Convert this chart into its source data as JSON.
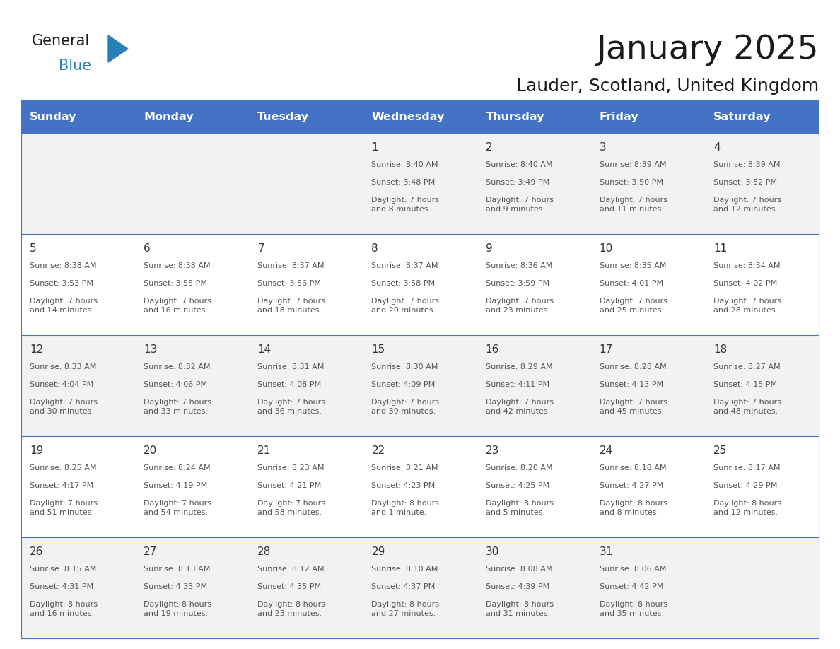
{
  "title": "January 2025",
  "subtitle": "Lauder, Scotland, United Kingdom",
  "header_bg_color": "#4472C4",
  "header_text_color": "#FFFFFF",
  "header_days": [
    "Sunday",
    "Monday",
    "Tuesday",
    "Wednesday",
    "Thursday",
    "Friday",
    "Saturday"
  ],
  "odd_row_bg": "#F2F2F2",
  "even_row_bg": "#FFFFFF",
  "line_color": "#4472C4",
  "cell_text_color": "#555555",
  "day_num_color": "#333333",
  "title_color": "#1a1a1a",
  "weeks": [
    {
      "days": [
        {
          "day": "",
          "sunrise": "",
          "sunset": "",
          "daylight": ""
        },
        {
          "day": "",
          "sunrise": "",
          "sunset": "",
          "daylight": ""
        },
        {
          "day": "",
          "sunrise": "",
          "sunset": "",
          "daylight": ""
        },
        {
          "day": "1",
          "sunrise": "Sunrise: 8:40 AM",
          "sunset": "Sunset: 3:48 PM",
          "daylight": "Daylight: 7 hours\nand 8 minutes."
        },
        {
          "day": "2",
          "sunrise": "Sunrise: 8:40 AM",
          "sunset": "Sunset: 3:49 PM",
          "daylight": "Daylight: 7 hours\nand 9 minutes."
        },
        {
          "day": "3",
          "sunrise": "Sunrise: 8:39 AM",
          "sunset": "Sunset: 3:50 PM",
          "daylight": "Daylight: 7 hours\nand 11 minutes."
        },
        {
          "day": "4",
          "sunrise": "Sunrise: 8:39 AM",
          "sunset": "Sunset: 3:52 PM",
          "daylight": "Daylight: 7 hours\nand 12 minutes."
        }
      ]
    },
    {
      "days": [
        {
          "day": "5",
          "sunrise": "Sunrise: 8:38 AM",
          "sunset": "Sunset: 3:53 PM",
          "daylight": "Daylight: 7 hours\nand 14 minutes."
        },
        {
          "day": "6",
          "sunrise": "Sunrise: 8:38 AM",
          "sunset": "Sunset: 3:55 PM",
          "daylight": "Daylight: 7 hours\nand 16 minutes."
        },
        {
          "day": "7",
          "sunrise": "Sunrise: 8:37 AM",
          "sunset": "Sunset: 3:56 PM",
          "daylight": "Daylight: 7 hours\nand 18 minutes."
        },
        {
          "day": "8",
          "sunrise": "Sunrise: 8:37 AM",
          "sunset": "Sunset: 3:58 PM",
          "daylight": "Daylight: 7 hours\nand 20 minutes."
        },
        {
          "day": "9",
          "sunrise": "Sunrise: 8:36 AM",
          "sunset": "Sunset: 3:59 PM",
          "daylight": "Daylight: 7 hours\nand 23 minutes."
        },
        {
          "day": "10",
          "sunrise": "Sunrise: 8:35 AM",
          "sunset": "Sunset: 4:01 PM",
          "daylight": "Daylight: 7 hours\nand 25 minutes."
        },
        {
          "day": "11",
          "sunrise": "Sunrise: 8:34 AM",
          "sunset": "Sunset: 4:02 PM",
          "daylight": "Daylight: 7 hours\nand 28 minutes."
        }
      ]
    },
    {
      "days": [
        {
          "day": "12",
          "sunrise": "Sunrise: 8:33 AM",
          "sunset": "Sunset: 4:04 PM",
          "daylight": "Daylight: 7 hours\nand 30 minutes."
        },
        {
          "day": "13",
          "sunrise": "Sunrise: 8:32 AM",
          "sunset": "Sunset: 4:06 PM",
          "daylight": "Daylight: 7 hours\nand 33 minutes."
        },
        {
          "day": "14",
          "sunrise": "Sunrise: 8:31 AM",
          "sunset": "Sunset: 4:08 PM",
          "daylight": "Daylight: 7 hours\nand 36 minutes."
        },
        {
          "day": "15",
          "sunrise": "Sunrise: 8:30 AM",
          "sunset": "Sunset: 4:09 PM",
          "daylight": "Daylight: 7 hours\nand 39 minutes."
        },
        {
          "day": "16",
          "sunrise": "Sunrise: 8:29 AM",
          "sunset": "Sunset: 4:11 PM",
          "daylight": "Daylight: 7 hours\nand 42 minutes."
        },
        {
          "day": "17",
          "sunrise": "Sunrise: 8:28 AM",
          "sunset": "Sunset: 4:13 PM",
          "daylight": "Daylight: 7 hours\nand 45 minutes."
        },
        {
          "day": "18",
          "sunrise": "Sunrise: 8:27 AM",
          "sunset": "Sunset: 4:15 PM",
          "daylight": "Daylight: 7 hours\nand 48 minutes."
        }
      ]
    },
    {
      "days": [
        {
          "day": "19",
          "sunrise": "Sunrise: 8:25 AM",
          "sunset": "Sunset: 4:17 PM",
          "daylight": "Daylight: 7 hours\nand 51 minutes."
        },
        {
          "day": "20",
          "sunrise": "Sunrise: 8:24 AM",
          "sunset": "Sunset: 4:19 PM",
          "daylight": "Daylight: 7 hours\nand 54 minutes."
        },
        {
          "day": "21",
          "sunrise": "Sunrise: 8:23 AM",
          "sunset": "Sunset: 4:21 PM",
          "daylight": "Daylight: 7 hours\nand 58 minutes."
        },
        {
          "day": "22",
          "sunrise": "Sunrise: 8:21 AM",
          "sunset": "Sunset: 4:23 PM",
          "daylight": "Daylight: 8 hours\nand 1 minute."
        },
        {
          "day": "23",
          "sunrise": "Sunrise: 8:20 AM",
          "sunset": "Sunset: 4:25 PM",
          "daylight": "Daylight: 8 hours\nand 5 minutes."
        },
        {
          "day": "24",
          "sunrise": "Sunrise: 8:18 AM",
          "sunset": "Sunset: 4:27 PM",
          "daylight": "Daylight: 8 hours\nand 8 minutes."
        },
        {
          "day": "25",
          "sunrise": "Sunrise: 8:17 AM",
          "sunset": "Sunset: 4:29 PM",
          "daylight": "Daylight: 8 hours\nand 12 minutes."
        }
      ]
    },
    {
      "days": [
        {
          "day": "26",
          "sunrise": "Sunrise: 8:15 AM",
          "sunset": "Sunset: 4:31 PM",
          "daylight": "Daylight: 8 hours\nand 16 minutes."
        },
        {
          "day": "27",
          "sunrise": "Sunrise: 8:13 AM",
          "sunset": "Sunset: 4:33 PM",
          "daylight": "Daylight: 8 hours\nand 19 minutes."
        },
        {
          "day": "28",
          "sunrise": "Sunrise: 8:12 AM",
          "sunset": "Sunset: 4:35 PM",
          "daylight": "Daylight: 8 hours\nand 23 minutes."
        },
        {
          "day": "29",
          "sunrise": "Sunrise: 8:10 AM",
          "sunset": "Sunset: 4:37 PM",
          "daylight": "Daylight: 8 hours\nand 27 minutes."
        },
        {
          "day": "30",
          "sunrise": "Sunrise: 8:08 AM",
          "sunset": "Sunset: 4:39 PM",
          "daylight": "Daylight: 8 hours\nand 31 minutes."
        },
        {
          "day": "31",
          "sunrise": "Sunrise: 8:06 AM",
          "sunset": "Sunset: 4:42 PM",
          "daylight": "Daylight: 8 hours\nand 35 minutes."
        },
        {
          "day": "",
          "sunrise": "",
          "sunset": "",
          "daylight": ""
        }
      ]
    }
  ]
}
